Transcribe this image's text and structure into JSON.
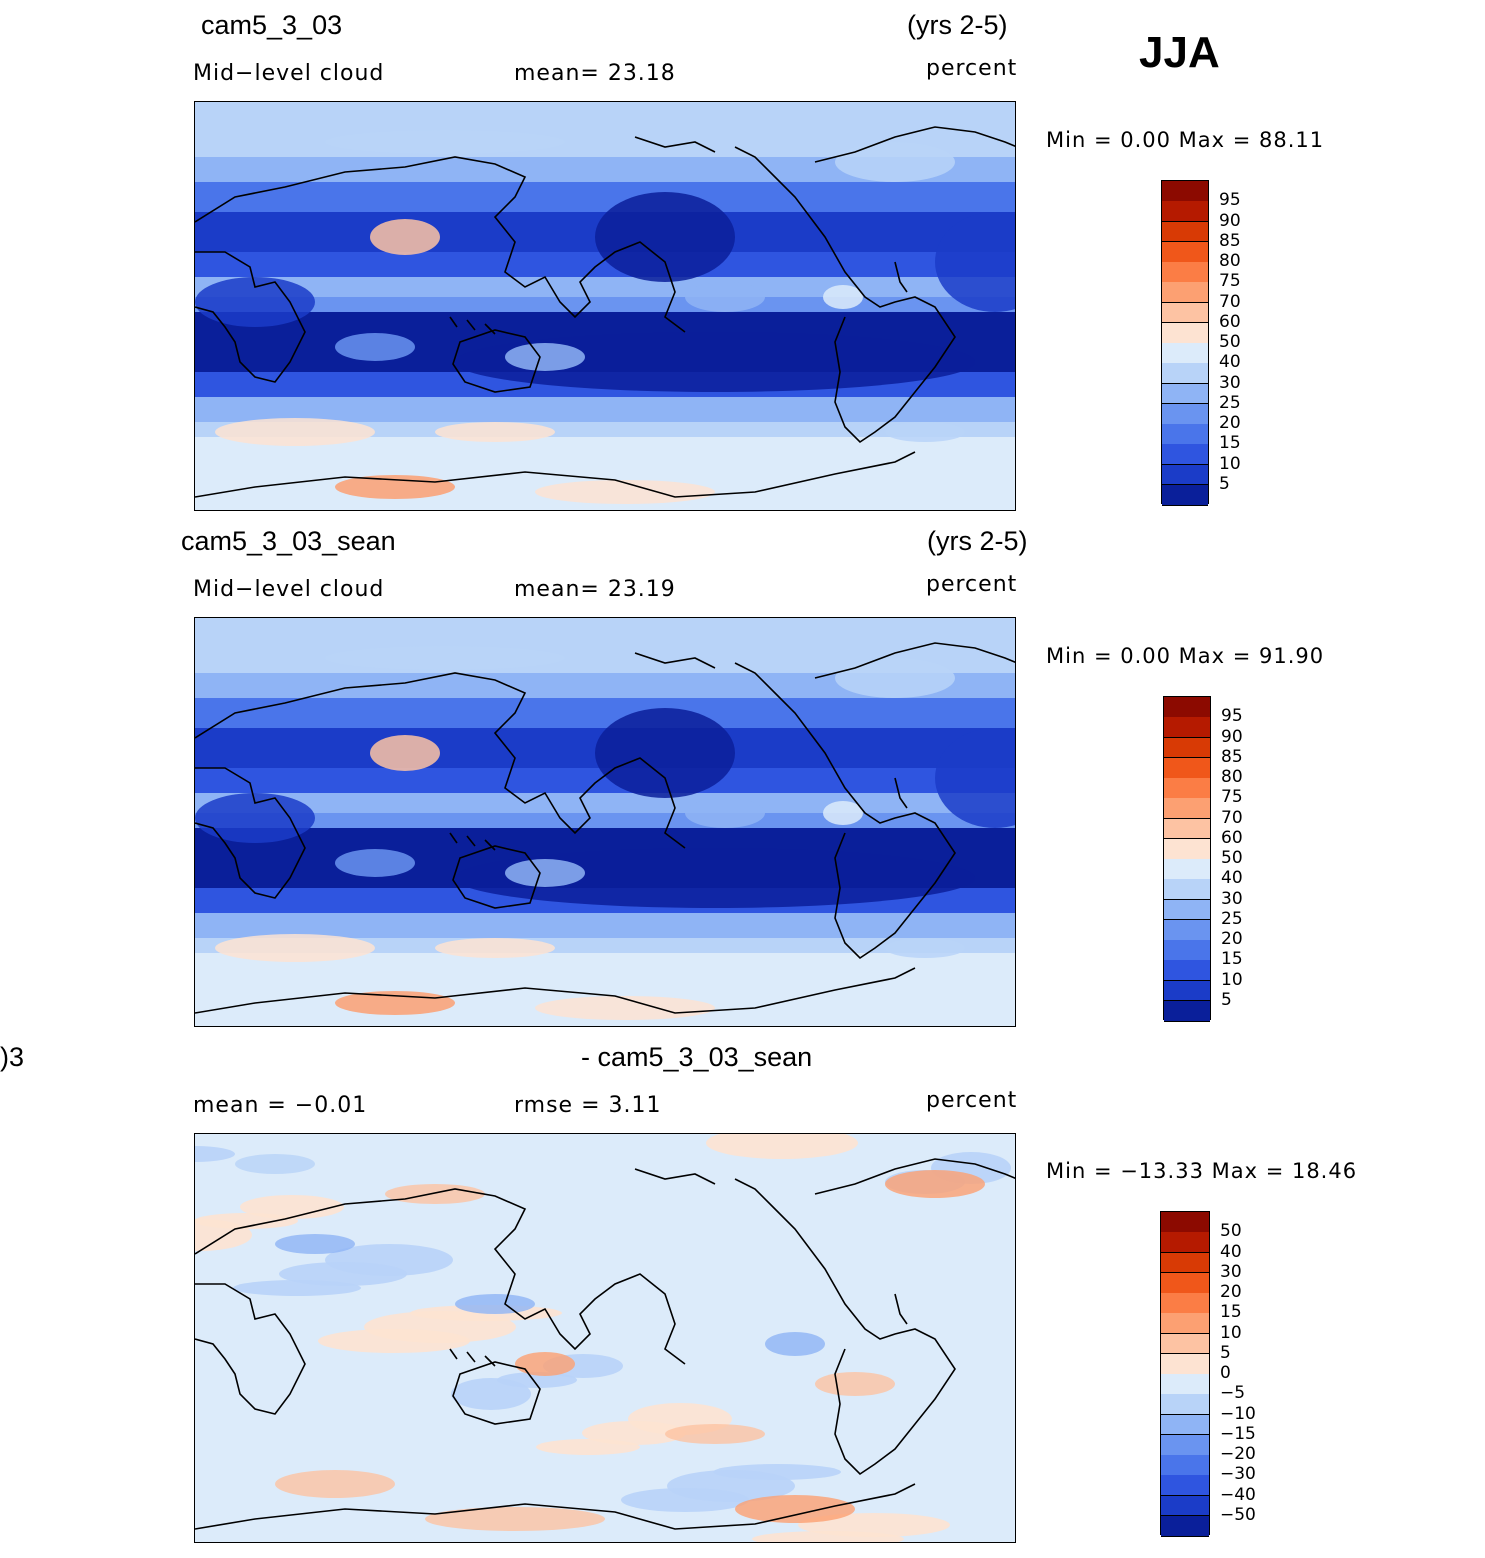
{
  "season": "JJA",
  "panels": [
    {
      "case": "cam5_3_03",
      "years": "(yrs 2-5)",
      "variable": "Mid−level  cloud",
      "stat": "mean=   23.18",
      "units": "percent",
      "minmax": "Min  =      0.00  Max  =    88.11",
      "field": "model",
      "levels": [
        "95",
        "90",
        "85",
        "80",
        "75",
        "70",
        "60",
        "50",
        "40",
        "30",
        "25",
        "20",
        "15",
        "10",
        "5"
      ],
      "colors": [
        "#8c0a00",
        "#b51a00",
        "#d83a05",
        "#f0571a",
        "#fb7d45",
        "#fca072",
        "#fdc3a3",
        "#fde3d2",
        "#dcebfa",
        "#b8d3f8",
        "#8fb4f5",
        "#6a94f0",
        "#4a75ea",
        "#2f55e0",
        "#1b3cc8",
        "#0a1f9a"
      ]
    },
    {
      "case": "cam5_3_03_sean",
      "years": "(yrs 2-5)",
      "variable": "Mid−level  cloud",
      "stat": "mean=   23.19",
      "units": "percent",
      "minmax": "Min  =      0.00  Max  =    91.90",
      "field": "model",
      "levels": [
        "95",
        "90",
        "85",
        "80",
        "75",
        "70",
        "60",
        "50",
        "40",
        "30",
        "25",
        "20",
        "15",
        "10",
        "5"
      ],
      "colors": [
        "#8c0a00",
        "#b51a00",
        "#d83a05",
        "#f0571a",
        "#fb7d45",
        "#fca072",
        "#fdc3a3",
        "#fde3d2",
        "#dcebfa",
        "#b8d3f8",
        "#8fb4f5",
        "#6a94f0",
        "#4a75ea",
        "#2f55e0",
        "#1b3cc8",
        "#0a1f9a"
      ]
    },
    {
      "case_left": ")3",
      "case": "- cam5_3_03_sean",
      "stat_left": "mean  =    −0.01",
      "stat": "rmse  =     3.11",
      "units": "percent",
      "minmax": "Min  =  −13.33  Max  =    18.46",
      "field": "diff",
      "levels": [
        "50",
        "40",
        "30",
        "20",
        "15",
        "10",
        "5",
        "0",
        "−5",
        "−10",
        "−15",
        "−20",
        "−30",
        "−40",
        "−50"
      ],
      "colors": [
        "#8c0a00",
        "#b51a00",
        "#d83a05",
        "#f0571a",
        "#fb7d45",
        "#fca072",
        "#fdc3a3",
        "#fde3d2",
        "#dcebfa",
        "#b8d3f8",
        "#8fb4f5",
        "#6a94f0",
        "#4a75ea",
        "#2f55e0",
        "#1b3cc8",
        "#0a1f9a"
      ]
    }
  ]
}
